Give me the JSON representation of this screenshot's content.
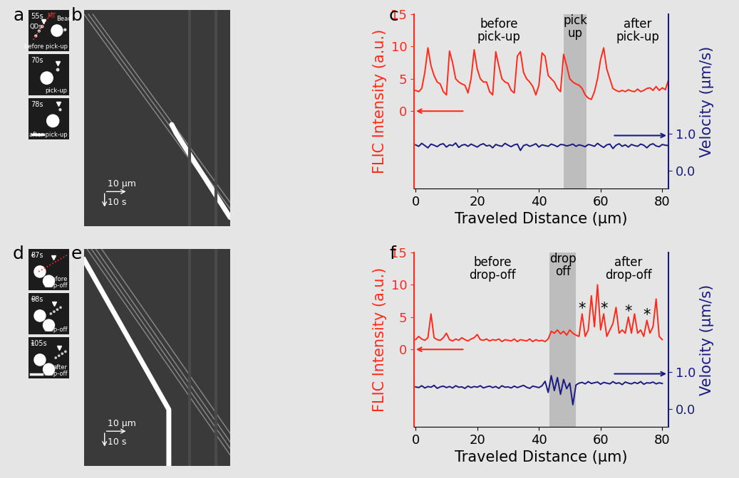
{
  "chart_data": [
    {
      "type": "line",
      "panel": "c",
      "xlabel": "Traveled Distance (µm)",
      "ylabel": "FLIC Intensity (a.u.)",
      "y2label": "Velocity (µm/s)",
      "xlim": [
        -0.5,
        82
      ],
      "xticks": [
        0,
        20,
        40,
        60,
        80
      ],
      "ylim": [
        -12,
        15
      ],
      "yticks": [
        0,
        5,
        10,
        15
      ],
      "y2lim": [
        -0.47,
        4.2
      ],
      "y2ticks": [
        {
          "value": 0,
          "label": "0.0"
        },
        {
          "value": 1,
          "label": "1.0"
        }
      ],
      "x": [
        0,
        1,
        2,
        3,
        4,
        5,
        6,
        7,
        8,
        9,
        10,
        11,
        12,
        13,
        14,
        15,
        16,
        17,
        18,
        19,
        20,
        21,
        22,
        23,
        24,
        25,
        26,
        27,
        28,
        29,
        30,
        31,
        32,
        33,
        34,
        35,
        36,
        37,
        38,
        39,
        40,
        41,
        42,
        43,
        44,
        45,
        46,
        47,
        48,
        49,
        50,
        51,
        52,
        53,
        54,
        55,
        56,
        57,
        58,
        59,
        60,
        61,
        62,
        63,
        64,
        65,
        66,
        67,
        68,
        69,
        70,
        71,
        72,
        73,
        74,
        75,
        76,
        77,
        78,
        79,
        80,
        81,
        82
      ],
      "series": [
        {
          "name": "FLIC Intensity (a.u.)",
          "color": "#ff2a1a",
          "values": [
            3.2,
            3.0,
            3.5,
            6.0,
            9.8,
            7.0,
            5.5,
            4.5,
            4.2,
            3.0,
            2.5,
            9.3,
            7.5,
            5.0,
            4.5,
            4.2,
            4.0,
            2.8,
            5.0,
            9.5,
            6.5,
            5.0,
            4.5,
            4.5,
            3.0,
            2.5,
            9.2,
            7.0,
            5.0,
            4.5,
            4.3,
            3.2,
            2.8,
            8.5,
            9.2,
            6.0,
            5.0,
            4.5,
            3.8,
            2.5,
            4.0,
            9.0,
            8.5,
            5.5,
            5.0,
            4.5,
            3.5,
            3.0,
            8.8,
            7.0,
            5.0,
            4.5,
            4.2,
            4.0,
            3.5,
            2.5,
            2.0,
            1.8,
            3.0,
            5.0,
            8.0,
            9.8,
            6.5,
            5.0,
            3.5,
            3.2,
            3.0,
            3.2,
            3.0,
            3.3,
            3.1,
            3.0,
            3.4,
            3.0,
            3.2,
            3.5,
            3.6,
            3.2,
            3.8,
            3.2,
            3.6,
            3.3,
            4.8
          ]
        },
        {
          "name": "Velocity (µm/s)",
          "color": "#1a1a80",
          "axis": "y2",
          "values": [
            0.7,
            0.66,
            0.74,
            0.68,
            0.62,
            0.72,
            0.69,
            0.65,
            0.71,
            0.73,
            0.64,
            0.7,
            0.68,
            0.75,
            0.63,
            0.69,
            0.71,
            0.66,
            0.72,
            0.68,
            0.64,
            0.7,
            0.73,
            0.67,
            0.69,
            0.62,
            0.71,
            0.68,
            0.66,
            0.74,
            0.69,
            0.65,
            0.7,
            0.72,
            0.55,
            0.68,
            0.71,
            0.66,
            0.69,
            0.73,
            0.64,
            0.7,
            0.68,
            0.66,
            0.72,
            0.69,
            0.65,
            0.71,
            0.7,
            0.67,
            0.69,
            0.72,
            0.66,
            0.7,
            0.68,
            0.65,
            0.71,
            0.69,
            0.66,
            0.74,
            0.68,
            0.63,
            0.7,
            0.72,
            0.6,
            0.69,
            0.73,
            0.66,
            0.7,
            0.64,
            0.71,
            0.68,
            0.66,
            0.72,
            0.69,
            0.62,
            0.7,
            0.73,
            0.67,
            0.65,
            0.71,
            0.69,
            0.68
          ]
        }
      ],
      "highlight": {
        "text": "pick\nup",
        "from": 48,
        "to": 55.5
      },
      "annotations": [
        {
          "text": "before\npick-up",
          "x": 27,
          "y": 12.5
        },
        {
          "text": "after\npick-up",
          "x": 72,
          "y": 12.5
        }
      ]
    },
    {
      "type": "line",
      "panel": "f",
      "xlabel": "Traveled Distance (µm)",
      "ylabel": "FLIC Intensity (a.u.)",
      "y2label": "Velocity (µm/s)",
      "xlim": [
        -0.5,
        82
      ],
      "xticks": [
        0,
        20,
        40,
        60,
        80
      ],
      "ylim": [
        -12,
        15
      ],
      "yticks": [
        0,
        5,
        10,
        15
      ],
      "y2lim": [
        -0.47,
        4.2
      ],
      "y2ticks": [
        {
          "value": 0,
          "label": "0.0"
        },
        {
          "value": 1,
          "label": "1.0"
        }
      ],
      "x": [
        0,
        1,
        2,
        3,
        4,
        5,
        6,
        7,
        8,
        9,
        10,
        11,
        12,
        13,
        14,
        15,
        16,
        17,
        18,
        19,
        20,
        21,
        22,
        23,
        24,
        25,
        26,
        27,
        28,
        29,
        30,
        31,
        32,
        33,
        34,
        35,
        36,
        37,
        38,
        39,
        40,
        41,
        42,
        43,
        44,
        45,
        46,
        47,
        48,
        49,
        50,
        51,
        52,
        53,
        54,
        55,
        56,
        57,
        58,
        59,
        60,
        61,
        62,
        63,
        64,
        65,
        66,
        67,
        68,
        69,
        70,
        71,
        72,
        73,
        74,
        75,
        76,
        77,
        78,
        79,
        80
      ],
      "series": [
        {
          "name": "FLIC Intensity (a.u.)",
          "color": "#ff2a1a",
          "values": [
            1.5,
            2.0,
            1.6,
            1.4,
            1.8,
            5.5,
            1.8,
            1.5,
            1.4,
            1.8,
            2.5,
            1.5,
            1.3,
            1.6,
            1.4,
            1.8,
            1.5,
            1.3,
            1.6,
            1.8,
            2.3,
            1.5,
            1.4,
            1.6,
            1.3,
            1.5,
            1.4,
            1.6,
            1.2,
            1.5,
            1.4,
            1.3,
            1.6,
            1.2,
            1.5,
            1.4,
            1.3,
            1.6,
            1.2,
            1.5,
            1.3,
            1.4,
            1.2,
            1.6,
            2.8,
            2.5,
            3.0,
            2.4,
            2.8,
            2.2,
            3.0,
            2.5,
            2.2,
            2.0,
            5.5,
            2.0,
            3.0,
            8.3,
            3.5,
            10.0,
            3.0,
            5.5,
            2.0,
            3.0,
            4.0,
            6.5,
            2.5,
            3.0,
            2.5,
            5.0,
            2.5,
            5.5,
            2.5,
            3.0,
            2.0,
            4.5,
            2.5,
            3.5,
            7.8,
            2.0,
            1.5
          ]
        },
        {
          "name": "Velocity (µm/s)",
          "color": "#1a1a80",
          "axis": "y2",
          "values": [
            0.6,
            0.58,
            0.63,
            0.57,
            0.61,
            0.59,
            0.64,
            0.56,
            0.6,
            0.62,
            0.58,
            0.61,
            0.57,
            0.63,
            0.59,
            0.6,
            0.56,
            0.62,
            0.58,
            0.61,
            0.59,
            0.63,
            0.57,
            0.6,
            0.62,
            0.58,
            0.61,
            0.56,
            0.63,
            0.59,
            0.6,
            0.57,
            0.62,
            0.58,
            0.61,
            0.64,
            0.59,
            0.56,
            0.62,
            0.6,
            0.58,
            0.63,
            0.75,
            0.45,
            0.9,
            0.5,
            0.85,
            0.4,
            0.8,
            0.55,
            0.7,
            0.12,
            0.65,
            0.7,
            0.72,
            0.68,
            0.74,
            0.69,
            0.71,
            0.73,
            0.67,
            0.72,
            0.7,
            0.68,
            0.74,
            0.69,
            0.71,
            0.66,
            0.73,
            0.7,
            0.68,
            0.72,
            0.69,
            0.74,
            0.67,
            0.71,
            0.7,
            0.73,
            0.68,
            0.71,
            0.69
          ]
        }
      ],
      "highlight": {
        "text": "drop\noff",
        "from": 43.5,
        "to": 52
      },
      "annotations": [
        {
          "text": "before\ndrop-off",
          "x": 25,
          "y": 12.5
        },
        {
          "text": "after\ndrop-off",
          "x": 69,
          "y": 12.5
        },
        {
          "text": "*",
          "x": 54,
          "y": 6.3
        },
        {
          "text": "*",
          "x": 61,
          "y": 6.3
        },
        {
          "text": "*",
          "x": 69,
          "y": 5.8
        },
        {
          "text": "*",
          "x": 75,
          "y": 5.3
        }
      ]
    }
  ],
  "image_panels": [
    {
      "panel": "a",
      "frames": [
        {
          "time": "55s",
          "caption": "before pick-up",
          "labels": {
            "qds": "QDs",
            "mt": "MT",
            "bead": "Bead"
          }
        },
        {
          "time": "70s",
          "caption": "pick-up"
        },
        {
          "time": "78s",
          "caption": "after pick-up"
        }
      ]
    },
    {
      "panel": "b",
      "scale_x": "10 µm",
      "scale_t": "10 s"
    },
    {
      "panel": "d",
      "frames": [
        {
          "time": "87s",
          "caption": "before\ndrop-off"
        },
        {
          "time": "98s",
          "caption": "drop-off"
        },
        {
          "time": "105s",
          "caption": "after\ndrop-off"
        }
      ]
    },
    {
      "panel": "e",
      "scale_x": "10 µm",
      "scale_t": "10 s"
    }
  ]
}
